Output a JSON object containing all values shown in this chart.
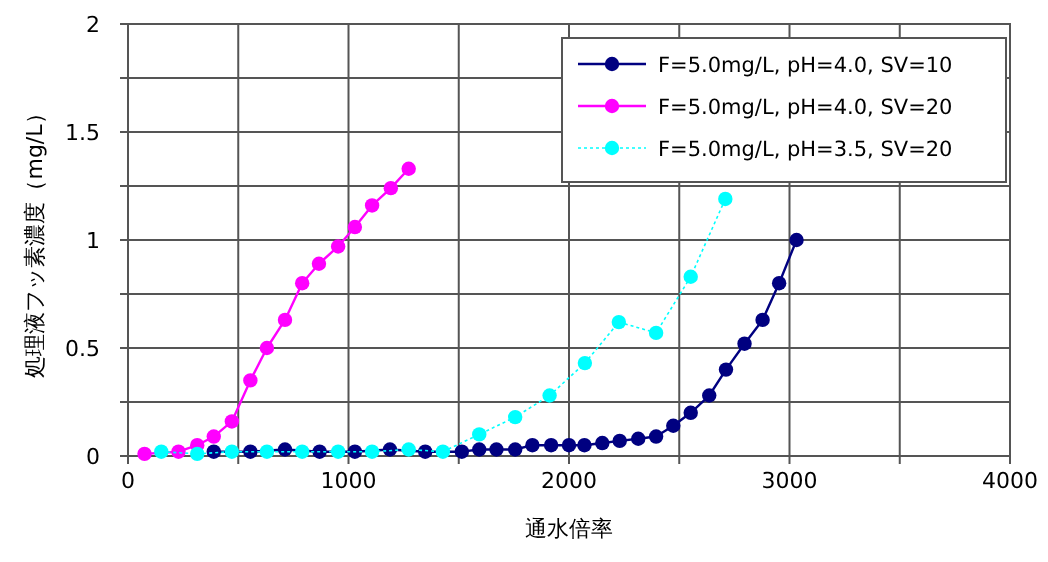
{
  "chart_data": {
    "type": "line",
    "xlabel": "通水倍率",
    "ylabel": "処理液フッ素濃度（mg/L）",
    "xlim": [
      0,
      4000
    ],
    "ylim": [
      0,
      2
    ],
    "xticks": [
      0,
      {
        "value": 500,
        "label": null
      },
      1000,
      {
        "value": 1500,
        "label": null
      },
      2000,
      {
        "value": 2500,
        "label": null
      },
      3000,
      {
        "value": 3500,
        "label": null
      },
      4000
    ],
    "yticks": [
      0,
      {
        "value": 0.25,
        "label": null
      },
      0.5,
      {
        "value": 0.75,
        "label": null
      },
      1,
      {
        "value": 1.25,
        "label": null
      },
      1.5,
      {
        "value": 1.75,
        "label": null
      },
      2
    ],
    "grid": true,
    "legend": "top right",
    "marker": "circle",
    "series": [
      {
        "name": "F=5.0mg/L, pH=4.0, SV=10",
        "color": "#000080",
        "line_style": "solid",
        "x": [
          389,
          555,
          712,
          869,
          1029,
          1188,
          1348,
          1514,
          1593,
          1671,
          1756,
          1834,
          1919,
          2000,
          2070,
          2151,
          2230,
          2314,
          2395,
          2473,
          2552,
          2636,
          2712,
          2796,
          2878,
          2953,
          3032
        ],
        "values": [
          0.02,
          0.02,
          0.03,
          0.02,
          0.02,
          0.03,
          0.02,
          0.02,
          0.03,
          0.03,
          0.03,
          0.05,
          0.05,
          0.05,
          0.05,
          0.06,
          0.07,
          0.08,
          0.09,
          0.14,
          0.2,
          0.28,
          0.4,
          0.52,
          0.63,
          0.8,
          1.0
        ]
      },
      {
        "name": "F=5.0mg/L, pH=4.0, SV=20",
        "color": "#ff00ff",
        "line_style": "solid",
        "x": [
          75,
          229,
          314,
          389,
          471,
          555,
          630,
          712,
          790,
          866,
          953,
          1029,
          1107,
          1192,
          1273
        ],
        "values": [
          0.01,
          0.02,
          0.05,
          0.09,
          0.16,
          0.35,
          0.5,
          0.63,
          0.8,
          0.89,
          0.97,
          1.06,
          1.16,
          1.24,
          1.33
        ]
      },
      {
        "name": "F=5.0mg/L, pH=3.5, SV=20",
        "color": "#00ffff",
        "line_style": "dotted",
        "x": [
          151,
          314,
          471,
          630,
          790,
          953,
          1107,
          1273,
          1428,
          1593,
          1756,
          1912,
          2072,
          2226,
          2395,
          2552,
          2709
        ],
        "values": [
          0.02,
          0.01,
          0.02,
          0.02,
          0.02,
          0.02,
          0.02,
          0.03,
          0.02,
          0.1,
          0.18,
          0.28,
          0.43,
          0.62,
          0.57,
          0.83,
          1.19
        ]
      }
    ]
  }
}
